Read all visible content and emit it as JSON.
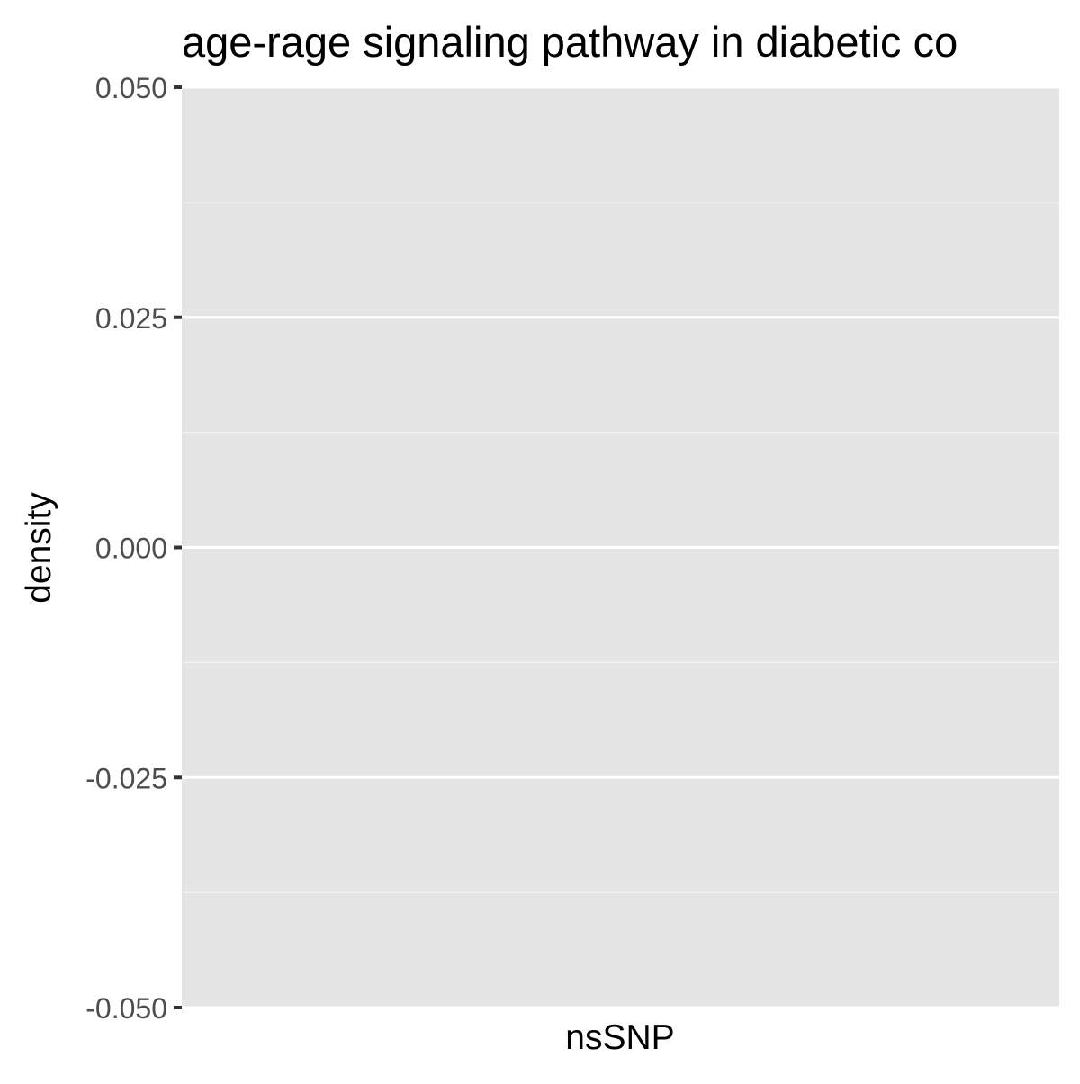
{
  "chart_data": {
    "type": "area",
    "title": "age-rage signaling pathway in diabetic co",
    "xlabel": "nsSNP",
    "ylabel": "density",
    "x_tick_labels": [],
    "y_ticks": [
      0.05,
      0.025,
      0.0,
      -0.025,
      -0.05
    ],
    "y_tick_labels": [
      "0.050",
      "0.025",
      "0.000",
      "-0.025",
      "-0.050"
    ],
    "ylim": [
      -0.05,
      0.05
    ],
    "series": [],
    "grid": true,
    "legend": "none"
  },
  "colors": {
    "panel_background": "#E5E5E5",
    "grid_major": "#FFFFFF",
    "grid_minor": "#F2F2F2",
    "tick_text": "#4D4D4D",
    "axis_title": "#000000"
  }
}
